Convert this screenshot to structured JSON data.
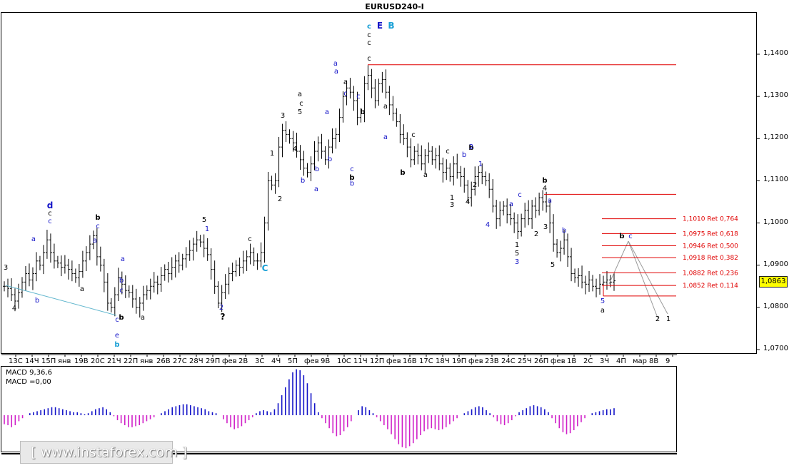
{
  "window": {
    "title": "EURUSD240-I",
    "current_price": "1,0863",
    "watermark": "[ www.instaforex.com ]"
  },
  "macd_panel": {
    "params_label": "MACD 9,36,6",
    "value_label": "MACD =0,00"
  },
  "colors": {
    "candles": "#000000",
    "red_lines": "#e00000",
    "blue_labels": "#1515c8",
    "cyan_labels": "#1aa0d6",
    "macd_positive": "#1515c8",
    "macd_negative": "#d020c8",
    "fib_labels": "#e00000",
    "price_box": "#ffff00"
  },
  "chart_data": {
    "type": "candlestick",
    "symbol": "EURUSD",
    "timeframe": "H4",
    "title": "EURUSD240-I",
    "ylim": [
      1.07,
      1.147
    ],
    "y_ticks": [
      "1,1400",
      "1,1300",
      "1,1200",
      "1,1100",
      "1,1000",
      "1,0900",
      "1,0800",
      "1,0700"
    ],
    "x_ticks": [
      "13С",
      "14Ч",
      "15П",
      "янв",
      "19В",
      "20С",
      "21Ч",
      "22П",
      "янв",
      "26В",
      "27С",
      "28Ч",
      "29П",
      "фев",
      "2В",
      "3С",
      "4Ч",
      "5П",
      "фев",
      "9В",
      "10С",
      "11Ч",
      "12П",
      "фев",
      "16В",
      "17С",
      "18Ч",
      "19П",
      "фев",
      "23В",
      "24С",
      "25Ч",
      "26П",
      "фев",
      "1В",
      "2С",
      "3Ч",
      "4П",
      "мар",
      "8В",
      "9"
    ],
    "last_price": 1.0863,
    "resistance_levels": [
      1.1375,
      1.1068,
      1.0827
    ],
    "fib_levels": [
      {
        "label": "1,1010 Ret 0,764",
        "value": 1.101
      },
      {
        "label": "1,0975 Ret 0,618",
        "value": 1.0975
      },
      {
        "label": "1,0946 Ret 0,500",
        "value": 1.0946
      },
      {
        "label": "1,0918 Ret 0,382",
        "value": 1.0918
      },
      {
        "label": "1,0882 Ret 0,236",
        "value": 1.0882
      },
      {
        "label": "1,0852 Ret 0,114",
        "value": 1.0852
      }
    ],
    "closes": [
      1.085,
      1.0845,
      1.083,
      1.0815,
      1.0835,
      1.086,
      1.088,
      1.0865,
      1.088,
      1.091,
      1.09,
      1.093,
      1.096,
      1.093,
      1.091,
      1.0905,
      1.0895,
      1.09,
      1.089,
      1.088,
      1.087,
      1.0885,
      1.091,
      1.093,
      1.095,
      1.097,
      1.092,
      1.09,
      1.086,
      1.081,
      1.08,
      1.083,
      1.087,
      1.0855,
      1.084,
      1.0835,
      1.082,
      1.08,
      1.081,
      1.083,
      1.084,
      1.085,
      1.086,
      1.0855,
      1.0875,
      1.089,
      1.088,
      1.0895,
      1.091,
      1.09,
      1.0915,
      1.0925,
      1.0935,
      1.095,
      1.096,
      1.0955,
      1.094,
      1.0925,
      1.089,
      1.085,
      1.081,
      1.0835,
      1.0855,
      1.088,
      1.0885,
      1.09,
      1.0895,
      1.091,
      1.092,
      1.093,
      1.091,
      1.091,
      1.093,
      1.1,
      1.11,
      1.109,
      1.11,
      1.118,
      1.122,
      1.121,
      1.12,
      1.119,
      1.117,
      1.115,
      1.113,
      1.112,
      1.114,
      1.117,
      1.119,
      1.117,
      1.115,
      1.118,
      1.12,
      1.121,
      1.125,
      1.13,
      1.132,
      1.131,
      1.129,
      1.125,
      1.126,
      1.133,
      1.135,
      1.132,
      1.129,
      1.133,
      1.134,
      1.131,
      1.128,
      1.126,
      1.124,
      1.121,
      1.12,
      1.118,
      1.115,
      1.117,
      1.116,
      1.114,
      1.116,
      1.117,
      1.115,
      1.116,
      1.114,
      1.112,
      1.113,
      1.111,
      1.114,
      1.112,
      1.111,
      1.109,
      1.106,
      1.108,
      1.111,
      1.112,
      1.111,
      1.11,
      1.108,
      1.104,
      1.101,
      1.103,
      1.104,
      1.102,
      1.101,
      1.1,
      1.098,
      1.101,
      1.103,
      1.101,
      1.104,
      1.103,
      1.106,
      1.105,
      1.104,
      1.1,
      1.095,
      1.093,
      1.094,
      1.096,
      1.092,
      1.088,
      1.087,
      1.0875,
      1.086,
      1.0855,
      1.0865,
      1.085,
      1.0845,
      1.0855,
      1.086,
      1.0865,
      1.086,
      1.0863
    ],
    "macd": [
      -0.9,
      -1.0,
      -1.2,
      -1.0,
      -0.6,
      -0.3,
      0.0,
      0.2,
      0.3,
      0.4,
      0.5,
      0.6,
      0.7,
      0.8,
      0.8,
      0.7,
      0.6,
      0.5,
      0.4,
      0.3,
      0.3,
      0.2,
      0.1,
      0.2,
      0.4,
      0.6,
      0.7,
      0.8,
      0.6,
      0.3,
      -0.1,
      -0.5,
      -0.8,
      -1.0,
      -1.2,
      -1.2,
      -1.1,
      -1.0,
      -0.8,
      -0.6,
      -0.4,
      -0.2,
      0.0,
      0.2,
      0.4,
      0.6,
      0.8,
      0.9,
      1.0,
      1.1,
      1.1,
      1.0,
      0.9,
      0.8,
      0.7,
      0.6,
      0.4,
      0.3,
      0.2,
      0.0,
      -0.4,
      -0.8,
      -1.2,
      -1.4,
      -1.3,
      -1.1,
      -0.8,
      -0.5,
      -0.2,
      0.2,
      0.4,
      0.5,
      0.4,
      0.3,
      0.6,
      1.2,
      2.0,
      2.8,
      3.6,
      4.3,
      4.6,
      4.5,
      4.0,
      3.2,
      2.2,
      1.2,
      0.3,
      -0.3,
      -0.8,
      -1.3,
      -1.8,
      -2.1,
      -2.0,
      -1.6,
      -1.2,
      -0.6,
      0.0,
      0.5,
      0.9,
      0.8,
      0.5,
      0.2,
      -0.2,
      -0.6,
      -1.0,
      -1.4,
      -1.9,
      -2.4,
      -2.9,
      -3.2,
      -3.3,
      -3.1,
      -2.8,
      -2.4,
      -2.0,
      -1.6,
      -1.4,
      -1.3,
      -1.4,
      -1.5,
      -1.4,
      -1.2,
      -0.9,
      -0.6,
      -0.3,
      0.0,
      0.2,
      0.4,
      0.6,
      0.8,
      0.9,
      0.8,
      0.5,
      0.2,
      -0.2,
      -0.6,
      -0.9,
      -1.0,
      -0.8,
      -0.5,
      -0.1,
      0.3,
      0.5,
      0.7,
      0.9,
      1.0,
      0.9,
      0.8,
      0.6,
      0.3,
      -0.3,
      -0.8,
      -1.3,
      -1.7,
      -1.9,
      -1.8,
      -1.5,
      -1.1,
      -0.7,
      -0.3,
      0.0,
      0.2,
      0.3,
      0.4,
      0.5,
      0.6,
      0.6,
      0.7
    ],
    "annotations": [
      {
        "text": "c",
        "color": "cyan"
      },
      {
        "text": "E",
        "color": "blue"
      },
      {
        "text": "B",
        "color": "cyan"
      },
      {
        "text": "c",
        "color": "black"
      },
      {
        "text": "c",
        "color": "black"
      },
      {
        "text": "c",
        "color": "black"
      },
      {
        "text": "d",
        "color": "blue"
      },
      {
        "text": "c",
        "color": "black"
      },
      {
        "text": "c",
        "color": "blue"
      },
      {
        "text": "b",
        "color": "black"
      },
      {
        "text": "c",
        "color": "blue"
      },
      {
        "text": "a",
        "color": "blue"
      },
      {
        "text": "b",
        "color": "blue"
      },
      {
        "text": "c",
        "color": "blue"
      },
      {
        "text": "b",
        "color": "black"
      },
      {
        "text": "a",
        "color": "blue"
      },
      {
        "text": "a",
        "color": "black"
      },
      {
        "text": "a",
        "color": "blue"
      },
      {
        "text": "b",
        "color": "blue"
      },
      {
        "text": "a",
        "color": "black"
      },
      {
        "text": "c",
        "color": "blue"
      },
      {
        "text": "e",
        "color": "blue"
      },
      {
        "text": "b",
        "color": "cyan"
      },
      {
        "text": "a",
        "color": "black"
      },
      {
        "text": "a",
        "color": "blue"
      },
      {
        "text": "b",
        "color": "blue"
      },
      {
        "text": "b",
        "color": "black"
      },
      {
        "text": "c",
        "color": "blue"
      },
      {
        "text": "a",
        "color": "blue"
      },
      {
        "text": "b",
        "color": "blue"
      },
      {
        "text": "c",
        "color": "black"
      },
      {
        "text": "b",
        "color": "blue"
      },
      {
        "text": "a",
        "color": "blue"
      },
      {
        "text": "b",
        "color": "blue"
      },
      {
        "text": "1",
        "color": "black"
      },
      {
        "text": "2",
        "color": "black"
      },
      {
        "text": "3",
        "color": "black"
      },
      {
        "text": "4",
        "color": "black"
      },
      {
        "text": "5",
        "color": "black"
      },
      {
        "text": "c",
        "color": "blue"
      },
      {
        "text": "a",
        "color": "black"
      },
      {
        "text": "a",
        "color": "blue"
      },
      {
        "text": "b",
        "color": "black"
      },
      {
        "text": "c",
        "color": "blue"
      },
      {
        "text": "a",
        "color": "black"
      },
      {
        "text": "a",
        "color": "blue"
      },
      {
        "text": "c",
        "color": "black"
      },
      {
        "text": "b",
        "color": "black"
      },
      {
        "text": "a",
        "color": "black"
      },
      {
        "text": "c",
        "color": "black"
      },
      {
        "text": "b",
        "color": "blue"
      },
      {
        "text": "b",
        "color": "black"
      },
      {
        "text": "2",
        "color": "blue"
      },
      {
        "text": "1",
        "color": "blue"
      },
      {
        "text": "2",
        "color": "black"
      },
      {
        "text": "1",
        "color": "black"
      },
      {
        "text": "3",
        "color": "black"
      },
      {
        "text": "4",
        "color": "black"
      },
      {
        "text": "a",
        "color": "blue"
      },
      {
        "text": "c",
        "color": "blue"
      },
      {
        "text": "4",
        "color": "blue"
      },
      {
        "text": "2",
        "color": "black"
      },
      {
        "text": "1",
        "color": "black"
      },
      {
        "text": "5",
        "color": "black"
      },
      {
        "text": "3",
        "color": "blue"
      },
      {
        "text": "b",
        "color": "black"
      },
      {
        "text": "4",
        "color": "black"
      },
      {
        "text": "a",
        "color": "blue"
      },
      {
        "text": "3",
        "color": "black"
      },
      {
        "text": "b",
        "color": "blue"
      },
      {
        "text": "5",
        "color": "black"
      },
      {
        "text": "5",
        "color": "blue"
      },
      {
        "text": "a",
        "color": "black"
      },
      {
        "text": "b",
        "color": "black"
      },
      {
        "text": "c",
        "color": "blue"
      },
      {
        "text": "2",
        "color": "black"
      },
      {
        "text": "1",
        "color": "black"
      },
      {
        "text": "4",
        "color": "black"
      },
      {
        "text": "3",
        "color": "black"
      },
      {
        "text": "5",
        "color": "black"
      },
      {
        "text": "1",
        "color": "blue"
      },
      {
        "text": "2",
        "color": "blue"
      },
      {
        "text": "?",
        "color": "black"
      },
      {
        "text": "c",
        "color": "black"
      },
      {
        "text": "C",
        "color": "cyan"
      }
    ]
  }
}
